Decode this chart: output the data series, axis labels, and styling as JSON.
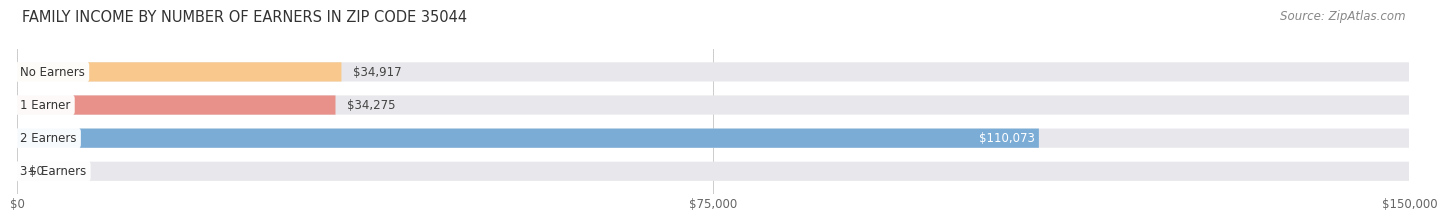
{
  "title": "FAMILY INCOME BY NUMBER OF EARNERS IN ZIP CODE 35044",
  "source": "Source: ZipAtlas.com",
  "categories": [
    "No Earners",
    "1 Earner",
    "2 Earners",
    "3+ Earners"
  ],
  "values": [
    34917,
    34275,
    110073,
    0
  ],
  "bar_colors": [
    "#f8c88c",
    "#e8918a",
    "#7aacd6",
    "#c4aed8"
  ],
  "label_colors": [
    "#444444",
    "#444444",
    "#ffffff",
    "#444444"
  ],
  "bar_bg_color": "#e8e8ec",
  "tick_labels": [
    "$0",
    "$75,000",
    "$150,000"
  ],
  "tick_values": [
    0,
    75000,
    150000
  ],
  "xlim": [
    0,
    150000
  ],
  "value_labels": [
    "$34,917",
    "$34,275",
    "$110,073",
    "$0"
  ],
  "fig_bg_color": "#ffffff",
  "title_fontsize": 10.5,
  "source_fontsize": 8.5,
  "label_fontsize": 8.5,
  "value_fontsize": 8.5
}
